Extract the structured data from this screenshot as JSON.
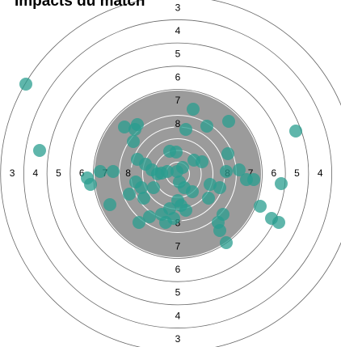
{
  "chart_data": {
    "type": "scatter",
    "title": "Impacts du match",
    "rings": [
      3,
      4,
      5,
      6,
      7,
      8
    ],
    "x": [
      -188,
      -171,
      146,
      128,
      19,
      -66,
      -50,
      -53,
      10,
      36,
      63,
      -55,
      -10,
      -2,
      20,
      62,
      76,
      85,
      94,
      -80,
      -96,
      -112,
      -108,
      -84,
      -60,
      -50,
      -40,
      -32,
      -25,
      -20,
      -13,
      -1,
      -52,
      -45,
      -30,
      -42,
      2,
      8,
      18,
      40,
      52,
      60,
      38,
      0,
      4,
      -10,
      -20,
      -35,
      -48,
      -15,
      -5,
      10,
      56,
      50,
      52,
      60,
      102,
      116,
      125,
      30,
      6
    ],
    "y": [
      111,
      29,
      53,
      -12,
      80,
      58,
      61,
      55,
      55,
      59,
      65,
      40,
      28,
      27,
      17,
      25,
      5,
      -7,
      -7,
      3,
      3,
      -5,
      -13,
      -38,
      -25,
      18,
      12,
      5,
      0,
      1,
      3,
      3,
      -10,
      -17,
      -17,
      -30,
      -10,
      -17,
      -22,
      -13,
      -17,
      3,
      -30,
      -33,
      -39,
      -43,
      -50,
      -53,
      -60,
      -60,
      -55,
      -45,
      -50,
      -60,
      -70,
      -85,
      -40,
      -55,
      -60,
      15,
      8
    ],
    "color": "#2a9d8f"
  }
}
